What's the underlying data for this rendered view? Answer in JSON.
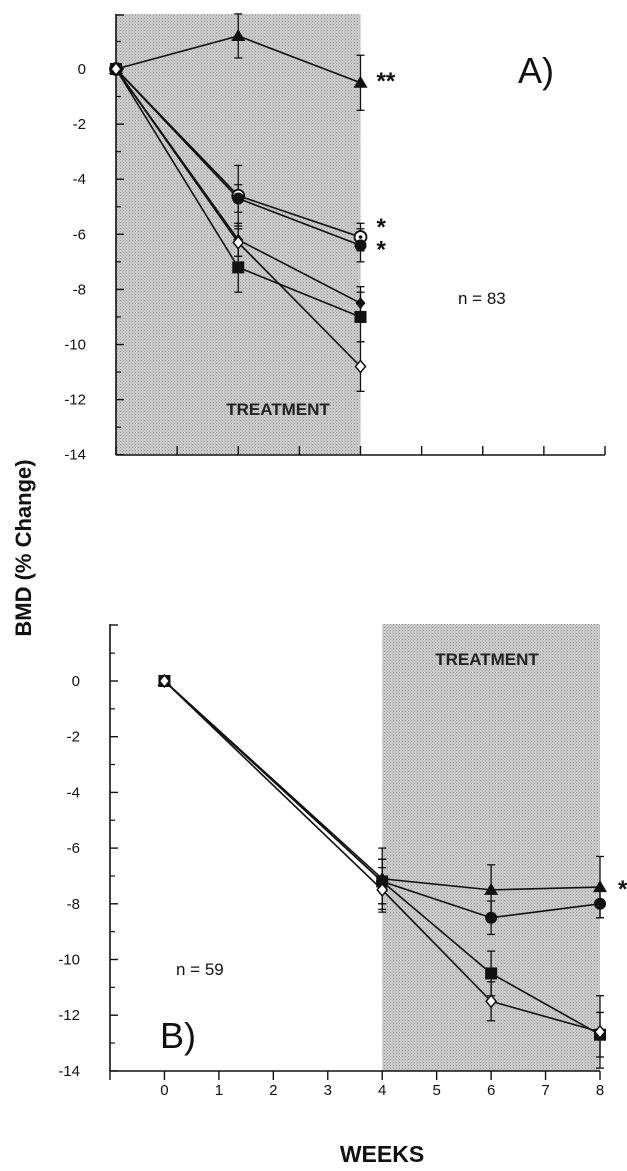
{
  "chart_data": [
    {
      "type": "line",
      "panel_label": "A)",
      "annotation": "n = 83",
      "shaded_label": "TREATMENT",
      "shaded_x": [
        0,
        4
      ],
      "xlim": [
        0,
        8
      ],
      "ylim": [
        -14,
        2
      ],
      "x_ticks": [
        0,
        1,
        2,
        3,
        4,
        5,
        6,
        7,
        8
      ],
      "y_ticks": [
        0,
        -2,
        -4,
        -6,
        -8,
        -10,
        -12,
        -14
      ],
      "y_tick_labels": [
        "0",
        "-2",
        "-4",
        "-6",
        "-8",
        "-10",
        "-12",
        "-14"
      ],
      "series": [
        {
          "marker": "triangle-filled",
          "x": [
            0,
            2,
            4
          ],
          "y": [
            0,
            1.2,
            -0.5
          ],
          "err": [
            0,
            0.8,
            1.0
          ],
          "significance": "**"
        },
        {
          "marker": "dotted-circle",
          "x": [
            0,
            2,
            4
          ],
          "y": [
            0,
            -4.6,
            -6.1
          ],
          "err": [
            0,
            1.1,
            0.5
          ],
          "significance": "*"
        },
        {
          "marker": "circle-filled",
          "x": [
            0,
            2,
            4
          ],
          "y": [
            0,
            -4.7,
            -6.4
          ],
          "err": [
            0,
            0.5,
            0.6
          ],
          "significance": "*"
        },
        {
          "marker": "diamond-filled",
          "x": [
            0,
            2,
            4
          ],
          "y": [
            0,
            -6.2,
            -8.5
          ],
          "err": [
            0,
            0.6,
            0.6
          ],
          "significance": ""
        },
        {
          "marker": "square-filled",
          "x": [
            0,
            2,
            4
          ],
          "y": [
            0,
            -7.2,
            -9.0
          ],
          "err": [
            0,
            0.9,
            0.9
          ],
          "significance": ""
        },
        {
          "marker": "diamond-open",
          "x": [
            0,
            2,
            4
          ],
          "y": [
            0,
            -6.3,
            -10.8
          ],
          "err": [
            0,
            0.5,
            0.9
          ],
          "significance": ""
        }
      ]
    },
    {
      "type": "line",
      "panel_label": "B)",
      "annotation": "n = 59",
      "shaded_label": "TREATMENT",
      "shaded_x": [
        4,
        8
      ],
      "xlim": [
        -1,
        8
      ],
      "ylim": [
        -14,
        2
      ],
      "x_ticks": [
        0,
        1,
        2,
        3,
        4,
        5,
        6,
        7,
        8
      ],
      "x_tick_labels": [
        "0",
        "1",
        "2",
        "3",
        "4",
        "5",
        "6",
        "7",
        "8"
      ],
      "y_ticks": [
        0,
        -2,
        -4,
        -6,
        -8,
        -10,
        -12,
        -14
      ],
      "y_tick_labels": [
        "0",
        "-2",
        "-4",
        "-6",
        "-8",
        "-10",
        "-12",
        "-14"
      ],
      "series": [
        {
          "marker": "triangle-filled",
          "x": [
            0,
            4,
            6,
            8
          ],
          "y": [
            0,
            -7.1,
            -7.5,
            -7.4
          ],
          "err": [
            0,
            1.1,
            0.9,
            1.1
          ],
          "significance": "*"
        },
        {
          "marker": "circle-filled",
          "x": [
            0,
            4,
            6,
            8
          ],
          "y": [
            0,
            -7.2,
            -8.5,
            -8.0
          ],
          "err": [
            0,
            0.8,
            0.6,
            0.5
          ],
          "significance": ""
        },
        {
          "marker": "square-filled",
          "x": [
            0,
            4,
            6,
            8
          ],
          "y": [
            0,
            -7.2,
            -10.5,
            -12.7
          ],
          "err": [
            0,
            0.8,
            0.8,
            0.8
          ],
          "significance": ""
        },
        {
          "marker": "diamond-open",
          "x": [
            0,
            4,
            6,
            8
          ],
          "y": [
            0,
            -7.5,
            -11.5,
            -12.6
          ],
          "err": [
            0,
            0.8,
            0.7,
            1.3
          ],
          "significance": ""
        }
      ]
    }
  ],
  "ylabel": "BMD (% Change)",
  "xlabel": "WEEKS"
}
